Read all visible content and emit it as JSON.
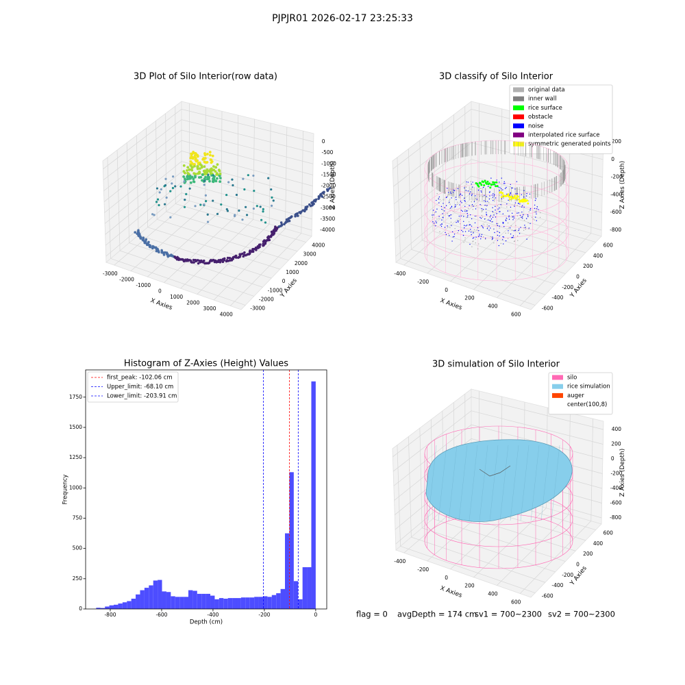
{
  "title": "PJPJR01 2026-02-17 23:25:33",
  "status": [
    "flag = 0",
    "avgDepth = 174 cm",
    "sv1 = 700~2300",
    "sv2 = 700~2300"
  ],
  "chart_data": [
    {
      "type": "scatter3d",
      "title": "3D Plot of Silo Interior(row data)",
      "xlabel": "X Axies",
      "ylabel": "Y Axies",
      "zlabel": "Z Axies (Depth)",
      "xticks": [
        -3000,
        -2000,
        -1000,
        0,
        1000,
        2000,
        3000,
        4000
      ],
      "yticks": [
        -3000,
        -2000,
        -1000,
        0,
        1000,
        2000,
        3000,
        4000
      ],
      "zticks": [
        -4000,
        -3500,
        -3000,
        -2500,
        -2000,
        -1500,
        -1000,
        -500,
        0
      ]
    },
    {
      "type": "scatter3d",
      "title": "3D classify of Silo Interior",
      "xlabel": "X Axies",
      "ylabel": "Y Axies",
      "zlabel": "Z Axies (Depth)",
      "xticks": [
        -400,
        -200,
        0,
        200,
        400,
        600
      ],
      "yticks": [
        -600,
        -400,
        -200,
        0,
        200,
        400,
        600
      ],
      "zticks": [
        -800,
        -600,
        -400,
        -200,
        0,
        200
      ],
      "legend": [
        {
          "name": "original data",
          "color": "#b0b0b0"
        },
        {
          "name": "inner wall",
          "color": "#808080"
        },
        {
          "name": "rice surface",
          "color": "#00ff00"
        },
        {
          "name": "obstacle",
          "color": "#ff0000"
        },
        {
          "name": "noise",
          "color": "#0000ff"
        },
        {
          "name": "interpolated rice surface",
          "color": "#800080"
        },
        {
          "name": "symmetric generated points",
          "color": "#ffff00"
        }
      ]
    },
    {
      "type": "histogram",
      "title": "Histogram of Z-Axies (Height) Values",
      "xlabel": "Depth (cm)",
      "ylabel": "Frequency",
      "color": "#4d4dff",
      "bins": [
        -855,
        -837.9,
        -820.8,
        -803.7,
        -786.6,
        -769.5,
        -752.4,
        -735.3,
        -718.2,
        -701.1,
        -684,
        -666.9,
        -649.8,
        -632.7,
        -615.6,
        -598.5,
        -581.4,
        -564.3,
        -547.2,
        -530.1,
        -513,
        -495.9,
        -478.8,
        -461.7,
        -444.6,
        -427.5,
        -410.4,
        -393.3,
        -376.2,
        -359.1,
        -342,
        -324.9,
        -307.8,
        -290.7,
        -273.6,
        -256.5,
        -239.4,
        -222.3,
        -205.2,
        -188.1,
        -171,
        -153.9,
        -136.8,
        -119.7,
        -102.6,
        -85.5,
        -68.4,
        -51.3,
        -34.2,
        -17.1,
        0
      ],
      "values": [
        10,
        8,
        20,
        30,
        35,
        45,
        55,
        65,
        85,
        120,
        155,
        175,
        195,
        235,
        240,
        145,
        140,
        105,
        100,
        100,
        100,
        155,
        150,
        125,
        125,
        125,
        110,
        80,
        90,
        85,
        90,
        90,
        90,
        95,
        95,
        95,
        100,
        100,
        105,
        100,
        115,
        130,
        165,
        625,
        1130,
        230,
        80,
        345,
        345,
        1880
      ],
      "xlim": [
        -896,
        43
      ],
      "ylim": [
        0,
        1975
      ],
      "xticks": [
        -800,
        -600,
        -400,
        -200,
        0
      ],
      "yticks": [
        0,
        250,
        500,
        750,
        1000,
        1250,
        1500,
        1750
      ],
      "vlines": [
        {
          "name": "first_peak: -102.06 cm",
          "value": -102.06,
          "color": "#ff0000"
        },
        {
          "name": "Upper_limit: -68.10 cm",
          "value": -68.1,
          "color": "#0000ff"
        },
        {
          "name": "Lower_limit: -203.91 cm",
          "value": -203.91,
          "color": "#0000ff"
        }
      ]
    },
    {
      "type": "surface3d",
      "title": "3D simulation of Silo Interior",
      "xlabel": "X Axies",
      "ylabel": "Y Axies",
      "zlabel": "Z Axies (Depth)",
      "xticks": [
        -400,
        -200,
        0,
        200,
        400,
        600
      ],
      "yticks": [
        -600,
        -400,
        -200,
        0,
        200,
        400,
        600
      ],
      "zticks": [
        -800,
        -600,
        -400,
        -200,
        0,
        200,
        400
      ],
      "legend": [
        {
          "name": "silo",
          "color": "#ff69b4"
        },
        {
          "name": "rice simulation",
          "color": "#87ceeb"
        },
        {
          "name": "auger",
          "color": "#ff4500"
        },
        {
          "name": "center(100,8)",
          "color": "#ffffff"
        }
      ]
    }
  ]
}
